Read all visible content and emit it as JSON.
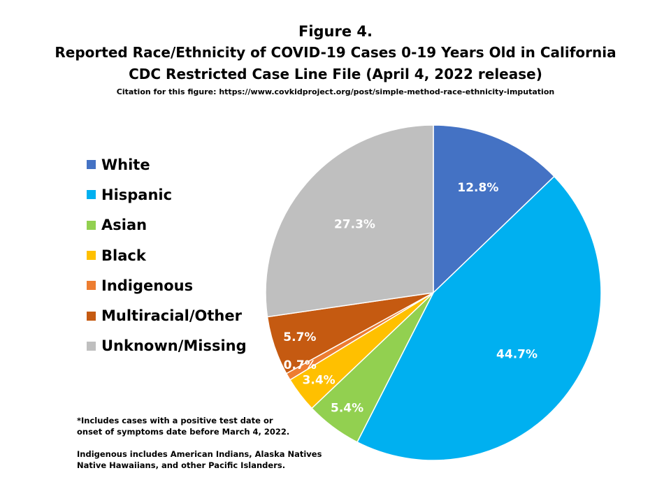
{
  "title": {
    "line1": "Figure 4.",
    "line2": "Reported Race/Ethnicity of COVID-19 Cases 0-19 Years Old in California",
    "line3": "CDC Restricted Case Line File (April 4, 2022 release)",
    "citation": "Citation for this figure: https://www.covkidproject.org/post/simple-method-race-ethnicity-imputation"
  },
  "notes": [
    "*Includes cases with a positive test date or\nonset of symptoms date before March 4, 2022.",
    "Indigenous includes American Indians, Alaska Natives\nNative Hawaiians, and other Pacific Islanders."
  ],
  "chart_data": {
    "type": "pie",
    "legend_position": "left",
    "slices": [
      {
        "name": "White",
        "value": 12.8,
        "label": "12.8%",
        "color": "#4472C4"
      },
      {
        "name": "Hispanic",
        "value": 44.7,
        "label": "44.7%",
        "color": "#00B0F0"
      },
      {
        "name": "Asian",
        "value": 5.4,
        "label": "5.4%",
        "color": "#92D050"
      },
      {
        "name": "Black",
        "value": 3.4,
        "label": "3.4%",
        "color": "#FFC000"
      },
      {
        "name": "Indigenous",
        "value": 0.7,
        "label": "0.7%",
        "color": "#ED7D31"
      },
      {
        "name": "Multiracial/Other",
        "value": 5.7,
        "label": "5.7%",
        "color": "#C55A11"
      },
      {
        "name": "Unknown/Missing",
        "value": 27.3,
        "label": "27.3%",
        "color": "#BFBFBF"
      }
    ]
  }
}
